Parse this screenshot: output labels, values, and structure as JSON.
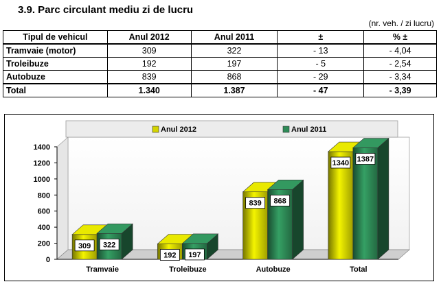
{
  "header": {
    "title": "3.9.  Parc circulant mediu zi de lucru",
    "unit": "(nr. veh. / zi lucru)"
  },
  "table": {
    "columns": [
      "Tipul de vehicul",
      "Anul 2012",
      "Anul 2011",
      "±",
      "% ±"
    ],
    "rows": [
      {
        "name": "Tramvaie (motor)",
        "y2012": "309",
        "y2011": "322",
        "diff": "- 13",
        "pct": "- 4,04"
      },
      {
        "name": "Troleibuze",
        "y2012": "192",
        "y2011": "197",
        "diff": "- 5",
        "pct": "- 2,54"
      },
      {
        "name": "Autobuze",
        "y2012": "839",
        "y2011": "868",
        "diff": "- 29",
        "pct": "- 3,34"
      }
    ],
    "total": {
      "name": "Total",
      "y2012": "1.340",
      "y2011": "1.387",
      "diff": "- 47",
      "pct": "- 3,39"
    }
  },
  "chart_data": {
    "type": "bar",
    "categories": [
      "Tramvaie",
      "Troleibuze",
      "Autobuze",
      "Total"
    ],
    "series": [
      {
        "name": "Anul 2012",
        "values": [
          309,
          192,
          839,
          1340
        ],
        "color": "#d4d400"
      },
      {
        "name": "Anul 2011",
        "values": [
          322,
          197,
          868,
          1387
        ],
        "color": "#2e8b57"
      }
    ],
    "ylim": [
      0,
      1400
    ],
    "yticks": [
      0,
      200,
      400,
      600,
      800,
      1000,
      1200,
      1400
    ],
    "legend": "top"
  }
}
